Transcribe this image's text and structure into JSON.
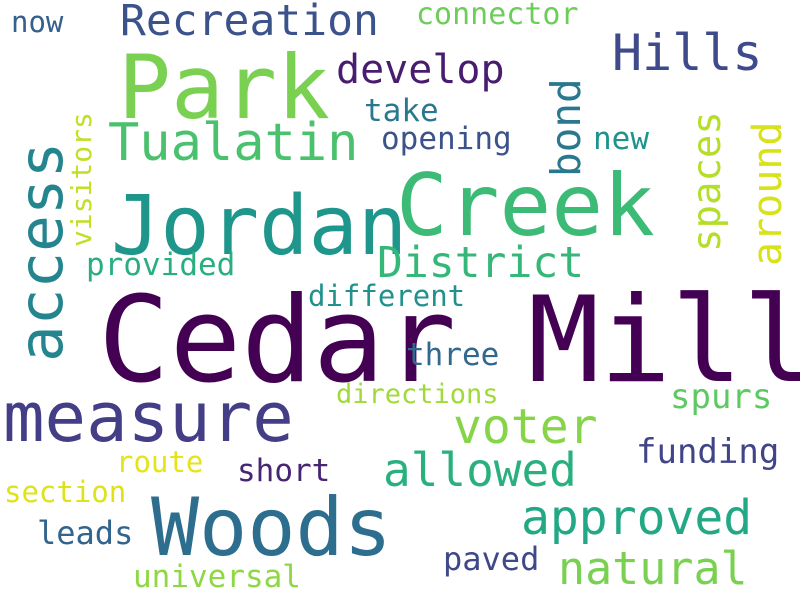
{
  "words": [
    {
      "text": "Cedar Mill",
      "color": "#440154"
    },
    {
      "text": "Creek",
      "color": "#3BBB75"
    },
    {
      "text": "Park",
      "color": "#7AD151"
    },
    {
      "text": "Jordan",
      "color": "#1F968B"
    },
    {
      "text": "Woods",
      "color": "#2D6E8E"
    },
    {
      "text": "measure",
      "color": "#433E85"
    },
    {
      "text": "access",
      "color": "#25858E"
    },
    {
      "text": "Tualatin",
      "color": "#4AC16D"
    },
    {
      "text": "Hills",
      "color": "#3E4A89"
    },
    {
      "text": "Recreation",
      "color": "#3B528B"
    },
    {
      "text": "develop",
      "color": "#481C6E"
    },
    {
      "text": "District",
      "color": "#35B779"
    },
    {
      "text": "approved",
      "color": "#22A884"
    },
    {
      "text": "allowed",
      "color": "#2AB07F"
    },
    {
      "text": "voter",
      "color": "#86D549"
    },
    {
      "text": "natural",
      "color": "#7AD151"
    },
    {
      "text": "bond",
      "color": "#2A788E"
    },
    {
      "text": "spaces",
      "color": "#B5DE2B"
    },
    {
      "text": "around",
      "color": "#D8E219"
    },
    {
      "text": "funding",
      "color": "#414487"
    },
    {
      "text": "spurs",
      "color": "#5EC962"
    },
    {
      "text": "connector",
      "color": "#6CCE59"
    },
    {
      "text": "opening",
      "color": "#3B528B"
    },
    {
      "text": "take",
      "color": "#2A788E"
    },
    {
      "text": "new",
      "color": "#20928C"
    },
    {
      "text": "provided",
      "color": "#29AF7F"
    },
    {
      "text": "different",
      "color": "#21918C"
    },
    {
      "text": "three",
      "color": "#31688E"
    },
    {
      "text": "directions",
      "color": "#A0DA39"
    },
    {
      "text": "visitors",
      "color": "#C2DF23"
    },
    {
      "text": "route",
      "color": "#E5E419"
    },
    {
      "text": "short",
      "color": "#482475"
    },
    {
      "text": "section",
      "color": "#DDE318"
    },
    {
      "text": "leads",
      "color": "#32648E"
    },
    {
      "text": "paved",
      "color": "#3F4889"
    },
    {
      "text": "universal",
      "color": "#8FD744"
    },
    {
      "text": "now",
      "color": "#355F8D"
    }
  ]
}
